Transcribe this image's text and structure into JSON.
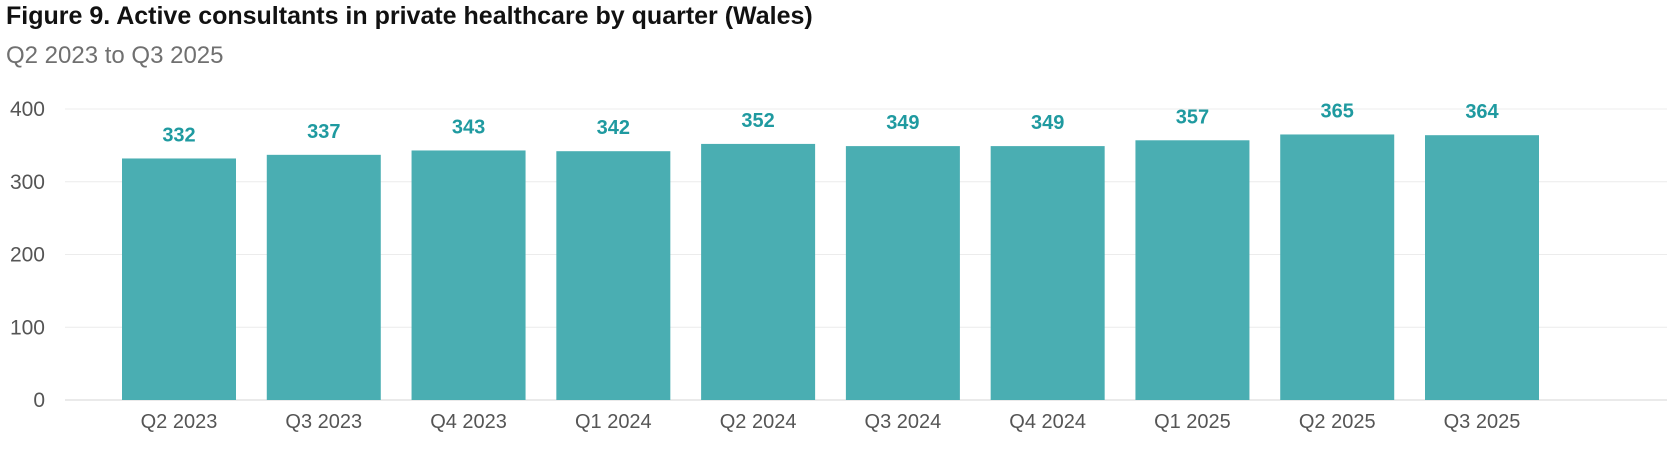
{
  "title": "Figure 9. Active consultants in private healthcare by quarter (Wales)",
  "subtitle": "Q2 2023 to Q3 2025",
  "chart_data": {
    "type": "bar",
    "title": "Figure 9. Active consultants in private healthcare by quarter (Wales)",
    "subtitle": "Q2 2023 to Q3 2025",
    "xlabel": "",
    "ylabel": "",
    "categories": [
      "Q2 2023",
      "Q3 2023",
      "Q4 2023",
      "Q1 2024",
      "Q2 2024",
      "Q3 2024",
      "Q4 2024",
      "Q1 2025",
      "Q2 2025",
      "Q3 2025"
    ],
    "values": [
      332,
      337,
      343,
      342,
      352,
      349,
      349,
      357,
      365,
      364
    ],
    "ylim": [
      0,
      400
    ],
    "yticks": [
      0,
      100,
      200,
      300,
      400
    ],
    "grid": true,
    "legend": "none",
    "bar_color": "#4aaeb2",
    "label_color": "#1f9aa0"
  }
}
